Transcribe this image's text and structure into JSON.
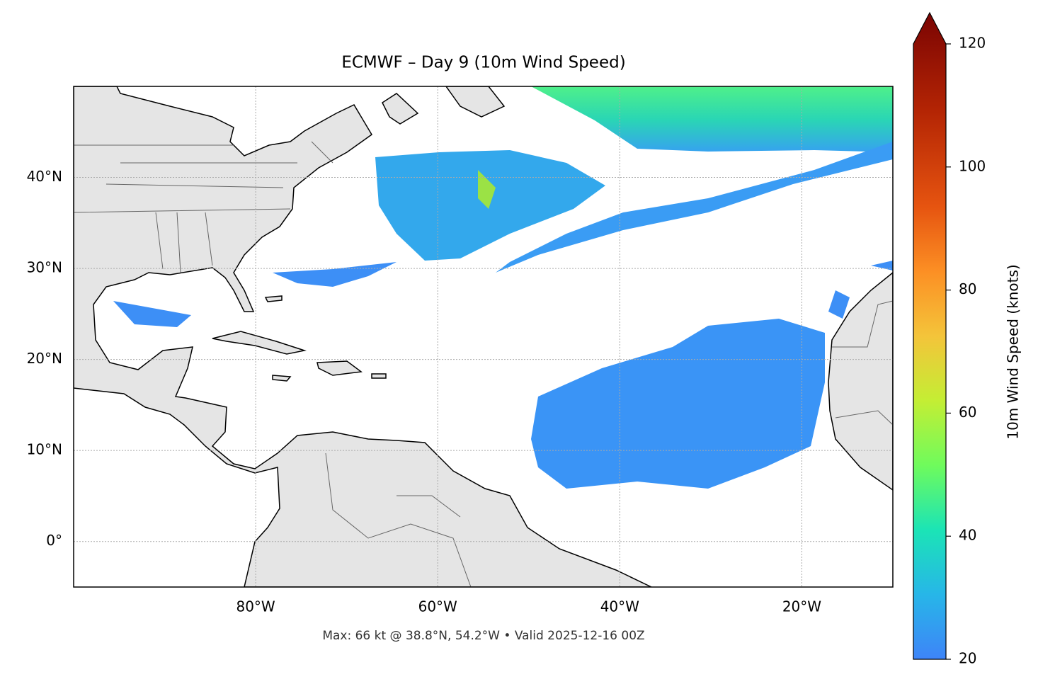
{
  "chart_data": {
    "type": "map",
    "title": "ECMWF – Day 9 (10m Wind Speed)",
    "annotation": "Max: 66 kt @ 38.8°N, 54.2°W • Valid 2025-12-16 00Z",
    "xlim": [
      -100,
      -10
    ],
    "ylim": [
      -5,
      50
    ],
    "xticks": [
      {
        "value": -80,
        "label": "80°W"
      },
      {
        "value": -60,
        "label": "60°W"
      },
      {
        "value": -40,
        "label": "40°W"
      },
      {
        "value": -20,
        "label": "20°W"
      }
    ],
    "yticks": [
      {
        "value": 0,
        "label": "0°"
      },
      {
        "value": 10,
        "label": "10°N"
      },
      {
        "value": 20,
        "label": "20°N"
      },
      {
        "value": 30,
        "label": "30°N"
      },
      {
        "value": 40,
        "label": "40°N"
      }
    ],
    "grid": true,
    "colorbar": {
      "label": "10m Wind Speed (knots)",
      "lim": [
        20,
        120
      ],
      "ticks": [
        20,
        40,
        60,
        80,
        100,
        120
      ]
    }
  }
}
